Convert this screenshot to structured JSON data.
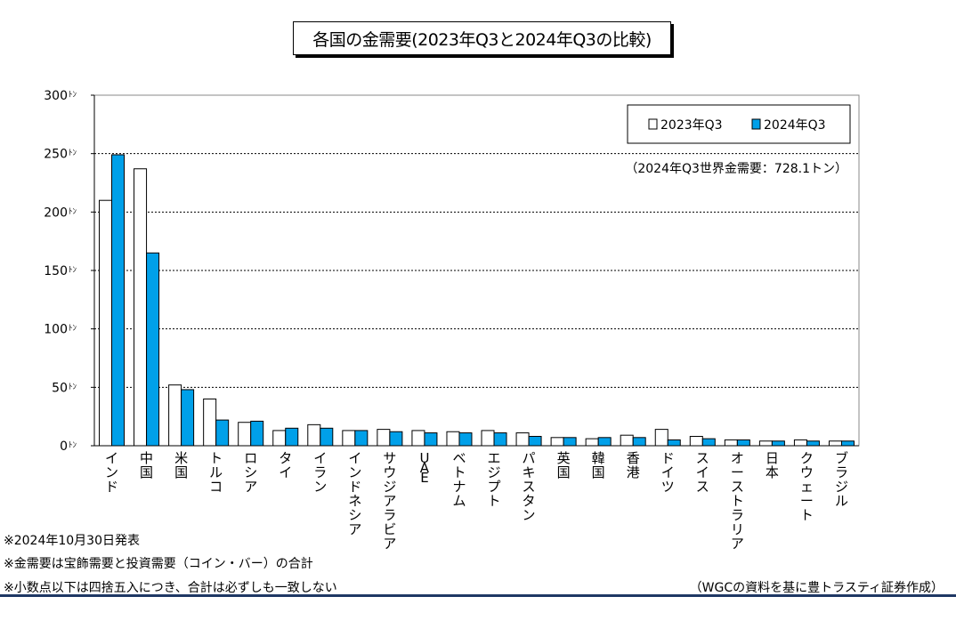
{
  "chart_data": {
    "type": "bar",
    "title": "各国の金需要(2023年Q3と2024年Q3の比較)",
    "categories": [
      "インド",
      "中国",
      "米国",
      "トルコ",
      "ロシア",
      "タイ",
      "イラン",
      "インドネシア",
      "サウジアラビア",
      "UAE",
      "ベトナム",
      "エジプト",
      "パキスタン",
      "英国",
      "韓国",
      "香港",
      "ドイツ",
      "スイス",
      "オーストラリア",
      "日本",
      "クウェート",
      "ブラジル"
    ],
    "series": [
      {
        "name": "2023年Q3",
        "color": "#ffffff",
        "values": [
          210,
          237,
          52,
          40,
          20,
          13,
          18,
          13,
          14,
          13,
          12,
          13,
          11,
          7,
          6,
          9,
          14,
          8,
          5,
          4,
          5,
          4
        ]
      },
      {
        "name": "2024年Q3",
        "color": "#00a0e9",
        "values": [
          249,
          165,
          48,
          22,
          21,
          15,
          15,
          13,
          12,
          11,
          11,
          11,
          8,
          7,
          7,
          7,
          5,
          6,
          5,
          4,
          4,
          4
        ]
      }
    ],
    "ylim": [
      0,
      300
    ],
    "yticks": [
      0,
      50,
      100,
      150,
      200,
      250,
      300
    ],
    "ytick_unit": "ﾄﾝ",
    "grid": true,
    "legend": "top-right",
    "annotation": "（2024年Q3世界金需要：728.1トン）"
  },
  "notes": [
    "※2024年10月30日発表",
    "※金需要は宝飾需要と投資需要（コイン・バー）の合計",
    "※小数点以下は四捨五入につき、合計は必ずしも一致しない"
  ],
  "source": "（WGCの資料を基に豊トラスティ証券作成）"
}
